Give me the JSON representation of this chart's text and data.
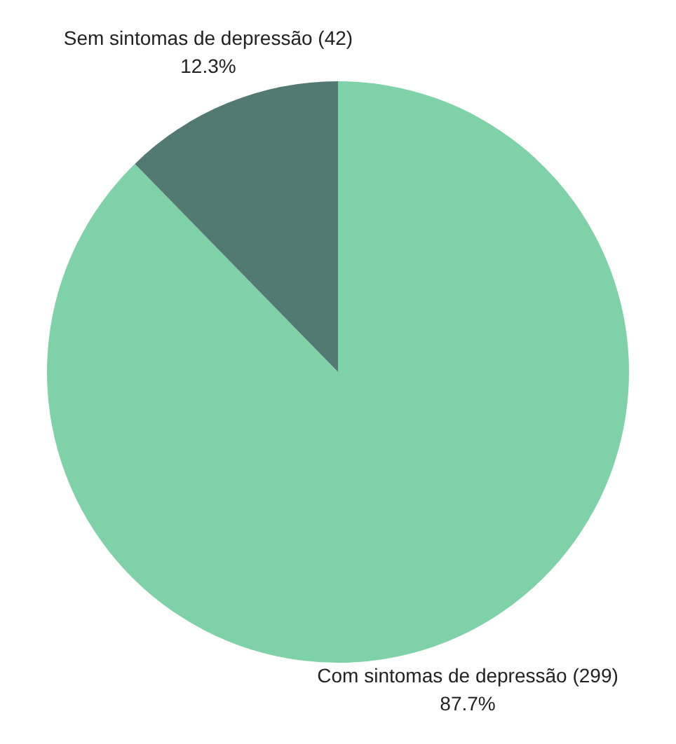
{
  "chart_data": {
    "type": "pie",
    "categories": [
      "Com sintomas de depressão (299)",
      "Sem sintomas de depressão (42)"
    ],
    "values": [
      87.7,
      12.3
    ],
    "colors": [
      "#7fd1a8",
      "#527a72"
    ],
    "value_labels": [
      "87.7%",
      "12.3%"
    ],
    "legend": false
  }
}
